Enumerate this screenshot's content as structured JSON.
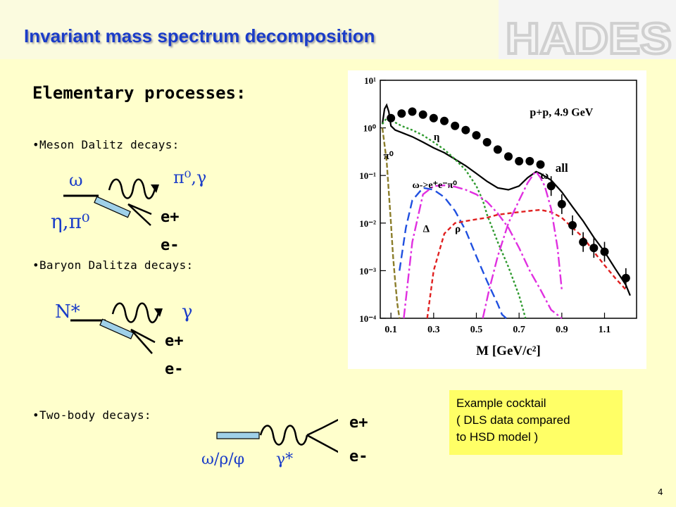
{
  "header": {
    "title": "Invariant mass spectrum decomposition",
    "logo_text": "HADES"
  },
  "section": {
    "heading": "Elementary processes:",
    "bullets": [
      "Meson Dalitz decays:",
      "Baryon Dalitza decays:",
      "Two-body decays:"
    ]
  },
  "diagrams": {
    "meson": {
      "parent": "ω",
      "spectators": "η,π⁰",
      "photon": "π⁰,γ",
      "lepton_plus": "e+",
      "lepton_minus": "e-"
    },
    "baryon": {
      "parent": "N*",
      "photon": "γ",
      "lepton_plus": "e+",
      "lepton_minus": "e-"
    },
    "twobody": {
      "parent": "ω/ρ/φ",
      "photon": "γ*",
      "lepton_plus": "e+",
      "lepton_minus": "e-"
    }
  },
  "colors": {
    "symbol": "#1a3cc8",
    "title": "#1a3cc8",
    "note_bg": "#ffff66"
  },
  "chart_data": {
    "type": "line",
    "xlabel": "M [GeV/c²]",
    "ylabel": "",
    "yscale": "log",
    "xlim": [
      0.05,
      1.25
    ],
    "ylim": [
      0.0001,
      10
    ],
    "x_ticks": [
      "0.1",
      "0.3",
      "0.5",
      "0.7",
      "0.9",
      "1.1"
    ],
    "y_ticks": [
      "10⁻⁴",
      "10⁻³",
      "10⁻²",
      "10⁻¹",
      "10⁰",
      "10¹"
    ],
    "annotations": [
      "p+p, 4.9 GeV",
      "π⁰",
      "η",
      "ω->e⁺e⁻π⁰",
      "Δ",
      "ρ",
      "ω",
      "all"
    ],
    "series": [
      {
        "name": "all",
        "color": "#000000",
        "dash": "solid",
        "x": [
          0.06,
          0.07,
          0.08,
          0.09,
          0.1,
          0.12,
          0.15,
          0.2,
          0.25,
          0.3,
          0.35,
          0.4,
          0.45,
          0.5,
          0.55,
          0.6,
          0.65,
          0.7,
          0.74,
          0.78,
          0.8,
          0.85,
          0.9,
          0.95,
          1.0,
          1.05,
          1.1,
          1.15,
          1.2,
          1.22
        ],
        "y": [
          1.2,
          2.5,
          3.0,
          2.2,
          1.1,
          0.9,
          0.8,
          0.65,
          0.5,
          0.38,
          0.3,
          0.22,
          0.16,
          0.11,
          0.075,
          0.055,
          0.05,
          0.06,
          0.09,
          0.12,
          0.11,
          0.08,
          0.045,
          0.022,
          0.011,
          0.005,
          0.0025,
          0.0011,
          0.0005,
          0.0003
        ]
      },
      {
        "name": "π⁰",
        "color": "#8b7d2a",
        "dash": "7,3",
        "x": [
          0.06,
          0.08,
          0.1,
          0.11,
          0.12,
          0.13,
          0.14
        ],
        "y": [
          1.0,
          0.2,
          0.01,
          0.002,
          0.0006,
          0.0002,
          0.0001
        ]
      },
      {
        "name": "η",
        "color": "#2e9a2e",
        "dash": "3,3",
        "x": [
          0.06,
          0.08,
          0.1,
          0.12,
          0.15,
          0.2,
          0.25,
          0.3,
          0.35,
          0.4,
          0.45,
          0.5,
          0.53,
          0.55,
          0.6,
          0.65,
          0.7,
          0.73
        ],
        "y": [
          1.2,
          1.6,
          1.5,
          1.3,
          1.1,
          0.9,
          0.7,
          0.5,
          0.35,
          0.22,
          0.13,
          0.06,
          0.03,
          0.015,
          0.004,
          0.0012,
          0.0003,
          0.0001
        ]
      },
      {
        "name": "ω->e⁺e⁻π⁰",
        "color": "#2050e0",
        "dash": "12,6",
        "x": [
          0.14,
          0.17,
          0.2,
          0.25,
          0.3,
          0.35,
          0.4,
          0.45,
          0.5,
          0.55,
          0.6,
          0.62,
          0.64
        ],
        "y": [
          0.001,
          0.008,
          0.03,
          0.055,
          0.05,
          0.035,
          0.018,
          0.007,
          0.002,
          0.0006,
          0.0002,
          0.00012,
          0.0001
        ]
      },
      {
        "name": "Δ",
        "color": "#e030e0",
        "dash": "14,4,3,4",
        "x": [
          0.16,
          0.2,
          0.25,
          0.3,
          0.35,
          0.4,
          0.45,
          0.5,
          0.55,
          0.6,
          0.65,
          0.7,
          0.75,
          0.8,
          0.85,
          0.9
        ],
        "y": [
          0.0001,
          0.004,
          0.04,
          0.06,
          0.062,
          0.058,
          0.05,
          0.04,
          0.028,
          0.016,
          0.008,
          0.003,
          0.001,
          0.0004,
          0.00015,
          0.0001
        ]
      },
      {
        "name": "ρ",
        "color": "#e02020",
        "dash": "6,4",
        "x": [
          0.27,
          0.3,
          0.35,
          0.4,
          0.45,
          0.5,
          0.55,
          0.6,
          0.65,
          0.7,
          0.75,
          0.8,
          0.85,
          0.9,
          0.95,
          1.0,
          1.05,
          1.1,
          1.15,
          1.2
        ],
        "y": [
          0.0001,
          0.001,
          0.006,
          0.01,
          0.011,
          0.012,
          0.013,
          0.015,
          0.016,
          0.017,
          0.018,
          0.019,
          0.017,
          0.013,
          0.008,
          0.005,
          0.0025,
          0.0013,
          0.0007,
          0.0004
        ]
      },
      {
        "name": "ω",
        "color": "#e030e0",
        "dash": "14,4,3,4",
        "x": [
          0.53,
          0.56,
          0.6,
          0.65,
          0.7,
          0.74,
          0.77,
          0.78,
          0.8,
          0.82,
          0.85,
          0.88,
          0.9
        ],
        "y": [
          0.0001,
          0.0004,
          0.002,
          0.01,
          0.03,
          0.07,
          0.11,
          0.12,
          0.09,
          0.06,
          0.02,
          0.003,
          0.0004
        ]
      }
    ],
    "data_points": {
      "x": [
        0.1,
        0.15,
        0.2,
        0.25,
        0.3,
        0.35,
        0.4,
        0.45,
        0.5,
        0.55,
        0.6,
        0.65,
        0.7,
        0.75,
        0.8,
        0.85,
        0.9,
        0.95,
        1.0,
        1.05,
        1.1,
        1.2
      ],
      "y": [
        1.6,
        2.0,
        2.2,
        1.9,
        1.6,
        1.4,
        1.1,
        0.9,
        0.7,
        0.5,
        0.35,
        0.25,
        0.2,
        0.2,
        0.17,
        0.06,
        0.025,
        0.009,
        0.004,
        0.003,
        0.0025,
        0.0007
      ]
    }
  },
  "note": {
    "lines": [
      "Example cocktail",
      "( DLS data compared",
      "to HSD model )"
    ]
  },
  "page_number": "4"
}
